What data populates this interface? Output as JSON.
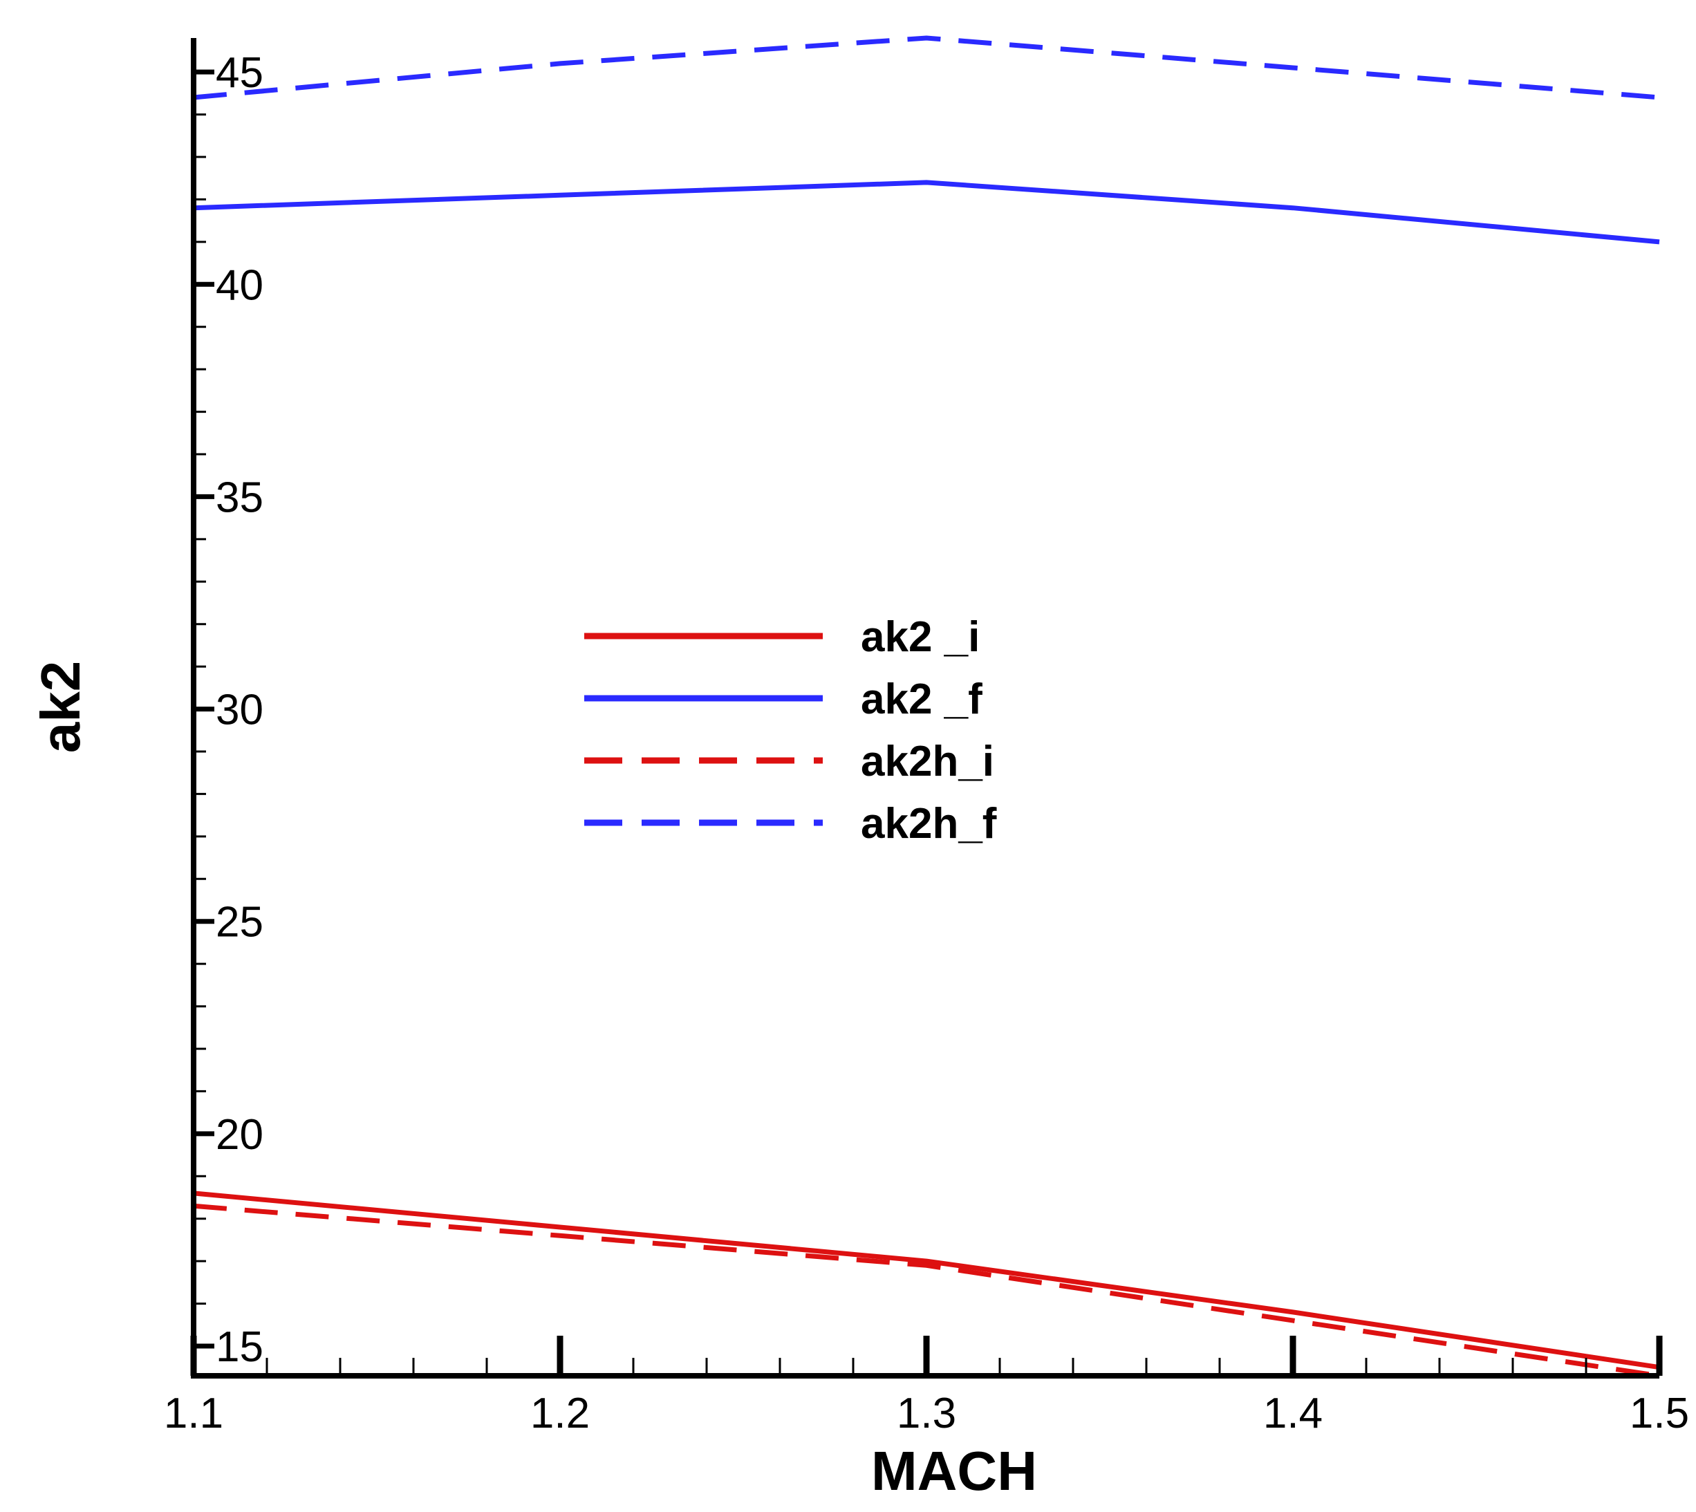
{
  "chart_data": {
    "type": "line",
    "xlabel": "MACH",
    "ylabel": "ak2",
    "xlim": [
      1.1,
      1.5
    ],
    "ylim": [
      14.3,
      45.8
    ],
    "x_ticks": [
      "1.1",
      "1.2",
      "1.3",
      "1.4",
      "1.5"
    ],
    "y_ticks": [
      "15",
      "20",
      "25",
      "30",
      "35",
      "40",
      "45"
    ],
    "legend_position": "center",
    "series": [
      {
        "name": "ak2 _i",
        "color": "#dd1111",
        "dash": "solid",
        "x": [
          1.1,
          1.2,
          1.3,
          1.4,
          1.5
        ],
        "y": [
          18.6,
          17.8,
          17.0,
          15.8,
          14.5
        ]
      },
      {
        "name": "ak2 _f",
        "color": "#2a2aff",
        "dash": "solid",
        "x": [
          1.1,
          1.2,
          1.3,
          1.4,
          1.5
        ],
        "y": [
          41.8,
          42.1,
          42.4,
          41.8,
          41.0
        ]
      },
      {
        "name": "ak2h_i",
        "color": "#dd1111",
        "dash": "dashed",
        "x": [
          1.1,
          1.2,
          1.3,
          1.4,
          1.5
        ],
        "y": [
          18.3,
          17.6,
          16.9,
          15.6,
          14.3
        ]
      },
      {
        "name": "ak2h_f",
        "color": "#2a2aff",
        "dash": "dashed",
        "x": [
          1.1,
          1.2,
          1.3,
          1.4,
          1.5
        ],
        "y": [
          44.4,
          45.2,
          45.8,
          45.1,
          44.4
        ]
      }
    ]
  }
}
